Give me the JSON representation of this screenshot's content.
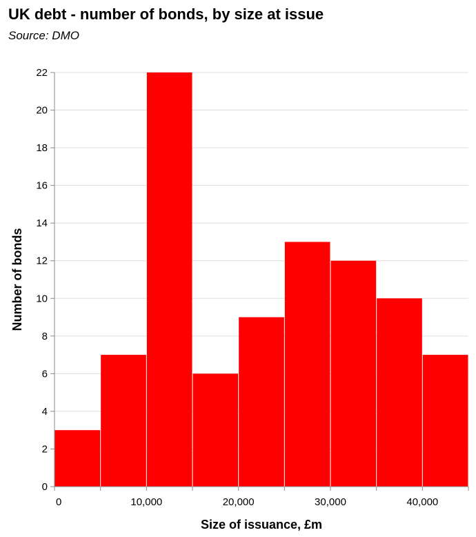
{
  "header": {
    "title": "UK debt - number of bonds, by size at issue",
    "subtitle": "Source: DMO"
  },
  "colors": {
    "bar": "#ff0000",
    "grid": "#dddddd",
    "axis": "#888888"
  },
  "chart_data": {
    "type": "bar",
    "title": "UK debt - number of bonds, by size at issue",
    "subtitle": "Source: DMO",
    "xlabel": "Size of issuance, £m",
    "ylabel": "Number of bonds",
    "bins": [
      {
        "x0": 0,
        "x1": 5000,
        "value": 3
      },
      {
        "x0": 5000,
        "x1": 10000,
        "value": 7
      },
      {
        "x0": 10000,
        "x1": 15000,
        "value": 22
      },
      {
        "x0": 15000,
        "x1": 20000,
        "value": 6
      },
      {
        "x0": 20000,
        "x1": 25000,
        "value": 9
      },
      {
        "x0": 25000,
        "x1": 30000,
        "value": 13
      },
      {
        "x0": 30000,
        "x1": 35000,
        "value": 12
      },
      {
        "x0": 35000,
        "x1": 40000,
        "value": 10
      },
      {
        "x0": 40000,
        "x1": 45000,
        "value": 7
      }
    ],
    "xlim": [
      0,
      45000
    ],
    "ylim": [
      0,
      22
    ],
    "x_ticks": [
      0,
      10000,
      20000,
      30000,
      40000
    ],
    "x_tick_labels": [
      "0",
      "10,000",
      "20,000",
      "30,000",
      "40,000"
    ],
    "y_ticks": [
      0,
      2,
      4,
      6,
      8,
      10,
      12,
      14,
      16,
      18,
      20,
      22
    ],
    "y_tick_labels": [
      "0",
      "2",
      "4",
      "6",
      "8",
      "10",
      "12",
      "14",
      "16",
      "18",
      "20",
      "22"
    ],
    "grid": true,
    "legend": false
  }
}
